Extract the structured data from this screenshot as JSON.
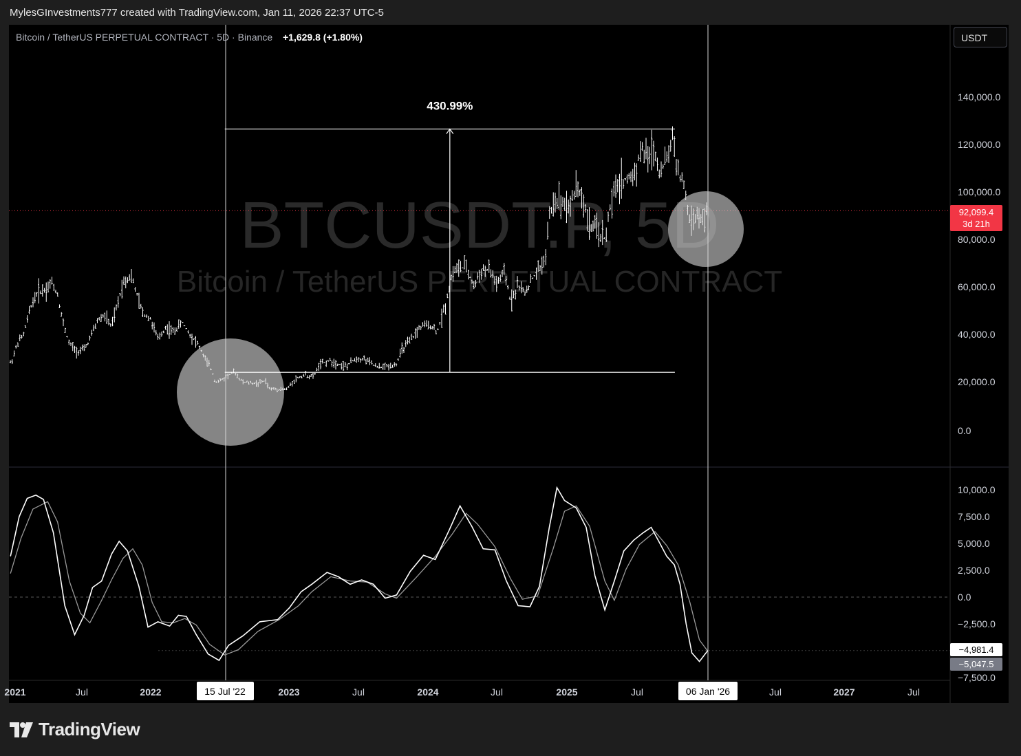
{
  "credit": "MylesGInvestments777 created with TradingView.com, Jan 11, 2026 22:37 UTC-5",
  "header": {
    "symbol_desc": "Bitcoin / TetherUS PERPETUAL CONTRACT · 5D · Binance",
    "change": "+1,629.8 (+1.80%)"
  },
  "currency_button": "USDT",
  "watermark": {
    "symbol": "BTCUSDT.P, 5D",
    "name": "Bitcoin / TetherUS PERPETUAL CONTRACT"
  },
  "measure_label": "430.99%",
  "price_tag": {
    "price": "92,099.4",
    "countdown": "3d 21h"
  },
  "osc_tags": {
    "a": "−4,981.4",
    "b": "−5,047.5"
  },
  "x_marker_left": "15 Jul '22",
  "x_marker_right": "06 Jan '26",
  "logo_text": "TradingView",
  "colors": {
    "background": "#000000",
    "price_tag": "#f23645",
    "candles": "#ffffff",
    "frame": "#1e1e1e"
  },
  "chart_data": [
    {
      "type": "bar",
      "title": "",
      "y_ticks": [
        "0.0",
        "20,000.0",
        "40,000.0",
        "60,000.0",
        "80,000.0",
        "100,000.0",
        "120,000.0",
        "140,000.0"
      ],
      "ylim": [
        -5000,
        160000
      ],
      "x_ticks": [
        "2021",
        "Jul",
        "2022",
        "15 Jul '22",
        "2023",
        "Jul",
        "2024",
        "Jul",
        "2025",
        "Jul",
        "06 Jan '26",
        "Jul",
        "2027",
        "Jul"
      ],
      "last_price": 92099.4,
      "measure": {
        "from_date": "2022-07-15",
        "to_date": "2025-10-06",
        "low": 24000,
        "high": 126500,
        "pct": "430.99%"
      },
      "highlight_circles": [
        "2022-07-15",
        "2026-01-06"
      ],
      "series": [
        {
          "values": [
            [
              "2020-12-30",
              28000
            ],
            [
              "2021-01-15",
              36000
            ],
            [
              "2021-02-01",
              40000
            ],
            [
              "2021-02-20",
              52000
            ],
            [
              "2021-03-10",
              58000
            ],
            [
              "2021-04-01",
              59000
            ],
            [
              "2021-04-15",
              62000
            ],
            [
              "2021-05-01",
              57000
            ],
            [
              "2021-05-15",
              45000
            ],
            [
              "2021-06-01",
              36000
            ],
            [
              "2021-06-20",
              33000
            ],
            [
              "2021-07-10",
              33500
            ],
            [
              "2021-07-25",
              38000
            ],
            [
              "2021-08-15",
              46000
            ],
            [
              "2021-09-01",
              48000
            ],
            [
              "2021-09-20",
              43000
            ],
            [
              "2021-10-05",
              52000
            ],
            [
              "2021-10-20",
              62000
            ],
            [
              "2021-11-10",
              65000
            ],
            [
              "2021-11-25",
              57000
            ],
            [
              "2021-12-10",
              49000
            ],
            [
              "2021-12-30",
              47000
            ],
            [
              "2022-01-20",
              38000
            ],
            [
              "2022-02-10",
              43000
            ],
            [
              "2022-03-01",
              41000
            ],
            [
              "2022-03-25",
              45000
            ],
            [
              "2022-04-15",
              40000
            ],
            [
              "2022-05-05",
              36000
            ],
            [
              "2022-05-25",
              29500
            ],
            [
              "2022-06-10",
              25000
            ],
            [
              "2022-06-20",
              20000
            ],
            [
              "2022-07-05",
              20500
            ],
            [
              "2022-07-25",
              23000
            ],
            [
              "2022-08-10",
              24000
            ],
            [
              "2022-08-30",
              20000
            ],
            [
              "2022-09-20",
              19500
            ],
            [
              "2022-10-10",
              19300
            ],
            [
              "2022-10-30",
              20500
            ],
            [
              "2022-11-10",
              17000
            ],
            [
              "2022-12-01",
              17000
            ],
            [
              "2022-12-25",
              16800
            ],
            [
              "2023-01-15",
              21000
            ],
            [
              "2023-02-10",
              23000
            ],
            [
              "2023-03-05",
              22000
            ],
            [
              "2023-03-20",
              27000
            ],
            [
              "2023-04-15",
              29000
            ],
            [
              "2023-05-10",
              27500
            ],
            [
              "2023-06-01",
              26500
            ],
            [
              "2023-06-25",
              30000
            ],
            [
              "2023-07-20",
              29500
            ],
            [
              "2023-08-20",
              26000
            ],
            [
              "2023-09-15",
              26500
            ],
            [
              "2023-10-10",
              27500
            ],
            [
              "2023-10-25",
              34000
            ],
            [
              "2023-11-15",
              37000
            ],
            [
              "2023-12-10",
              43000
            ],
            [
              "2024-01-05",
              44000
            ],
            [
              "2024-01-25",
              41000
            ],
            [
              "2024-02-15",
              52000
            ],
            [
              "2024-03-05",
              66000
            ],
            [
              "2024-03-20",
              68000
            ],
            [
              "2024-04-10",
              68000
            ],
            [
              "2024-05-01",
              60000
            ],
            [
              "2024-05-20",
              67000
            ],
            [
              "2024-06-10",
              67000
            ],
            [
              "2024-07-01",
              61000
            ],
            [
              "2024-07-20",
              66000
            ],
            [
              "2024-08-05",
              54000
            ],
            [
              "2024-08-25",
              61000
            ],
            [
              "2024-09-10",
              57000
            ],
            [
              "2024-09-30",
              63000
            ],
            [
              "2024-10-20",
              68000
            ],
            [
              "2024-11-05",
              72000
            ],
            [
              "2024-11-15",
              90000
            ],
            [
              "2024-12-01",
              97000
            ],
            [
              "2024-12-20",
              96000
            ],
            [
              "2025-01-10",
              94000
            ],
            [
              "2025-01-25",
              104000
            ],
            [
              "2025-02-10",
              97000
            ],
            [
              "2025-03-01",
              86000
            ],
            [
              "2025-03-20",
              84000
            ],
            [
              "2025-04-10",
              80000
            ],
            [
              "2025-04-25",
              94000
            ],
            [
              "2025-05-15",
              104000
            ],
            [
              "2025-06-05",
              105000
            ],
            [
              "2025-06-25",
              107000
            ],
            [
              "2025-07-15",
              118000
            ],
            [
              "2025-08-01",
              114000
            ],
            [
              "2025-08-15",
              119000
            ],
            [
              "2025-09-01",
              109000
            ],
            [
              "2025-09-20",
              113000
            ],
            [
              "2025-10-06",
              124000
            ],
            [
              "2025-10-20",
              108000
            ],
            [
              "2025-11-05",
              102000
            ],
            [
              "2025-11-20",
              87000
            ],
            [
              "2025-12-05",
              90000
            ],
            [
              "2025-12-20",
              87500
            ],
            [
              "2026-01-06",
              92099
            ]
          ]
        }
      ]
    },
    {
      "type": "line",
      "title": "",
      "y_ticks": [
        "−7,500.0",
        "−5,000.0",
        "−2,500.0",
        "0.0",
        "2,500.0",
        "5,000.0",
        "7,500.0",
        "10,000.0"
      ],
      "ylim": [
        -7500,
        11000
      ],
      "zero_line": true,
      "series": [
        {
          "values": [
            [
              "2020-12-28",
              3800
            ],
            [
              "2021-01-20",
              7500
            ],
            [
              "2021-02-10",
              9200
            ],
            [
              "2021-03-05",
              9500
            ],
            [
              "2021-03-25",
              9100
            ],
            [
              "2021-04-20",
              6000
            ],
            [
              "2021-05-20",
              -800
            ],
            [
              "2021-06-15",
              -3500
            ],
            [
              "2021-07-10",
              -1700
            ],
            [
              "2021-08-01",
              900
            ],
            [
              "2021-08-25",
              1500
            ],
            [
              "2021-09-20",
              4000
            ],
            [
              "2021-10-10",
              5200
            ],
            [
              "2021-11-01",
              4300
            ],
            [
              "2021-12-01",
              1000
            ],
            [
              "2021-12-25",
              -2800
            ],
            [
              "2022-01-20",
              -2300
            ],
            [
              "2022-02-20",
              -2700
            ],
            [
              "2022-03-15",
              -1700
            ],
            [
              "2022-04-05",
              -1800
            ],
            [
              "2022-05-01",
              -3500
            ],
            [
              "2022-06-01",
              -5300
            ],
            [
              "2022-06-30",
              -5900
            ],
            [
              "2022-07-25",
              -4500
            ],
            [
              "2022-09-01",
              -3600
            ],
            [
              "2022-10-15",
              -2300
            ],
            [
              "2022-12-01",
              -2100
            ],
            [
              "2023-01-01",
              -1000
            ],
            [
              "2023-02-01",
              500
            ],
            [
              "2023-03-01",
              1200
            ],
            [
              "2023-04-10",
              2300
            ],
            [
              "2023-05-10",
              1900
            ],
            [
              "2023-06-10",
              1200
            ],
            [
              "2023-07-10",
              1600
            ],
            [
              "2023-08-10",
              1200
            ],
            [
              "2023-09-10",
              -100
            ],
            [
              "2023-10-10",
              200
            ],
            [
              "2023-11-15",
              2400
            ],
            [
              "2023-12-20",
              3900
            ],
            [
              "2024-01-20",
              3500
            ],
            [
              "2024-02-25",
              6200
            ],
            [
              "2024-03-25",
              8500
            ],
            [
              "2024-04-25",
              6600
            ],
            [
              "2024-05-25",
              4500
            ],
            [
              "2024-06-25",
              4400
            ],
            [
              "2024-07-25",
              1500
            ],
            [
              "2024-08-25",
              -800
            ],
            [
              "2024-09-25",
              -900
            ],
            [
              "2024-10-20",
              1000
            ],
            [
              "2024-11-15",
              6500
            ],
            [
              "2024-12-05",
              10200
            ],
            [
              "2024-12-25",
              9000
            ],
            [
              "2025-01-25",
              8300
            ],
            [
              "2025-02-20",
              6500
            ],
            [
              "2025-03-15",
              2000
            ],
            [
              "2025-04-10",
              -1200
            ],
            [
              "2025-05-05",
              1500
            ],
            [
              "2025-05-30",
              4300
            ],
            [
              "2025-06-25",
              5300
            ],
            [
              "2025-07-20",
              6000
            ],
            [
              "2025-08-10",
              6500
            ],
            [
              "2025-08-30",
              5200
            ],
            [
              "2025-09-20",
              3800
            ],
            [
              "2025-10-10",
              3000
            ],
            [
              "2025-10-25",
              1200
            ],
            [
              "2025-11-10",
              -2500
            ],
            [
              "2025-11-25",
              -5200
            ],
            [
              "2025-12-15",
              -6000
            ],
            [
              "2026-01-06",
              -4981.4
            ]
          ]
        },
        {
          "values": [
            [
              "2020-12-28",
              2200
            ],
            [
              "2021-01-25",
              5500
            ],
            [
              "2021-02-25",
              8200
            ],
            [
              "2021-04-05",
              8900
            ],
            [
              "2021-05-01",
              7000
            ],
            [
              "2021-06-01",
              1500
            ],
            [
              "2021-06-30",
              -1500
            ],
            [
              "2021-07-25",
              -2400
            ],
            [
              "2021-08-25",
              -300
            ],
            [
              "2021-09-20",
              1600
            ],
            [
              "2021-10-20",
              3600
            ],
            [
              "2021-11-15",
              4500
            ],
            [
              "2021-12-10",
              3000
            ],
            [
              "2022-01-05",
              -500
            ],
            [
              "2022-01-30",
              -2300
            ],
            [
              "2022-03-01",
              -2400
            ],
            [
              "2022-04-01",
              -2000
            ],
            [
              "2022-05-01",
              -2600
            ],
            [
              "2022-06-05",
              -4400
            ],
            [
              "2022-07-15",
              -5400
            ],
            [
              "2022-08-20",
              -4900
            ],
            [
              "2022-10-10",
              -3200
            ],
            [
              "2022-12-05",
              -2100
            ],
            [
              "2023-01-25",
              -800
            ],
            [
              "2023-03-01",
              500
            ],
            [
              "2023-04-20",
              1900
            ],
            [
              "2023-06-10",
              1500
            ],
            [
              "2023-07-25",
              1400
            ],
            [
              "2023-09-10",
              300
            ],
            [
              "2023-10-10",
              -100
            ],
            [
              "2023-11-30",
              1800
            ],
            [
              "2024-01-20",
              3800
            ],
            [
              "2024-03-05",
              5900
            ],
            [
              "2024-04-10",
              7800
            ],
            [
              "2024-05-10",
              6800
            ],
            [
              "2024-06-25",
              4700
            ],
            [
              "2024-08-05",
              1700
            ],
            [
              "2024-09-05",
              -200
            ],
            [
              "2024-10-15",
              100
            ],
            [
              "2024-11-25",
              4500
            ],
            [
              "2024-12-25",
              8000
            ],
            [
              "2025-01-25",
              8500
            ],
            [
              "2025-03-01",
              6600
            ],
            [
              "2025-04-10",
              1500
            ],
            [
              "2025-05-05",
              -300
            ],
            [
              "2025-06-05",
              2600
            ],
            [
              "2025-07-10",
              4900
            ],
            [
              "2025-08-20",
              6100
            ],
            [
              "2025-09-20",
              4800
            ],
            [
              "2025-10-20",
              3000
            ],
            [
              "2025-11-20",
              -500
            ],
            [
              "2025-12-15",
              -4000
            ],
            [
              "2026-01-06",
              -5047.5
            ]
          ]
        }
      ]
    }
  ]
}
